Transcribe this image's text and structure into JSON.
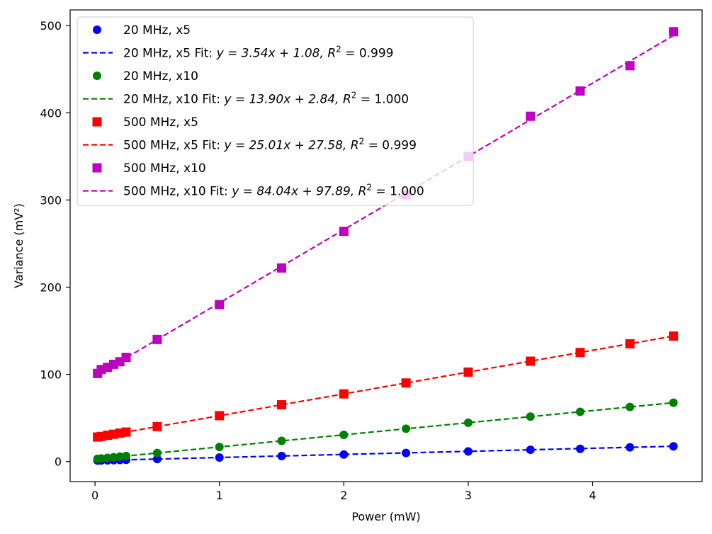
{
  "chart_data": {
    "type": "scatter",
    "title": "",
    "xlabel": "Power (mW)",
    "ylabel": "Variance (mV²)",
    "xlim": [
      -0.2,
      4.88
    ],
    "ylim": [
      -23,
      518
    ],
    "xticks": [
      0,
      1,
      2,
      3,
      4
    ],
    "yticks": [
      0,
      100,
      200,
      300,
      400,
      500
    ],
    "x": [
      0.02,
      0.05,
      0.1,
      0.15,
      0.2,
      0.25,
      0.5,
      1.0,
      1.5,
      2.0,
      2.5,
      3.0,
      3.5,
      3.9,
      4.3,
      4.65
    ],
    "legend_position": "upper-left",
    "series": [
      {
        "name": "20 MHz, x5",
        "color": "#0000ff",
        "marker": "circle",
        "values": [
          1.2,
          1.3,
          1.4,
          1.6,
          1.8,
          2.0,
          2.9,
          4.6,
          6.3,
          8.1,
          9.8,
          11.6,
          13.5,
          14.6,
          16.3,
          17.4
        ],
        "fit": {
          "slope": 3.54,
          "intercept": 1.08,
          "label": "20 MHz, x5 Fit: ",
          "eq": "y = 3.54x + 1.08, ",
          "r2": " = 0.999"
        }
      },
      {
        "name": "20 MHz, x10",
        "color": "#008000",
        "marker": "circle",
        "values": [
          3.1,
          3.5,
          4.2,
          4.9,
          5.6,
          6.3,
          9.8,
          16.7,
          23.7,
          30.6,
          37.6,
          44.5,
          51.5,
          57.0,
          62.6,
          67.5
        ],
        "fit": {
          "slope": 13.9,
          "intercept": 2.84,
          "label": "20 MHz, x10 Fit: ",
          "eq": "y = 13.90x + 2.84, ",
          "r2": " = 1.000"
        }
      },
      {
        "name": "500 MHz, x5",
        "color": "#ff0000",
        "marker": "square",
        "values": [
          28.1,
          28.8,
          30.1,
          31.3,
          32.6,
          33.8,
          40.1,
          52.6,
          65.1,
          77.6,
          90.1,
          102.6,
          115.1,
          125.1,
          135.1,
          143.9
        ],
        "fit": {
          "slope": 25.01,
          "intercept": 27.58,
          "label": "500 MHz, x5 Fit: ",
          "eq": "y = 25.01x + 27.58, ",
          "r2": " = 0.999"
        }
      },
      {
        "name": "500 MHz, x10",
        "color": "#bf00bf",
        "marker": "square",
        "values": [
          101.0,
          105.5,
          108.0,
          111.5,
          114.5,
          119.5,
          140.0,
          180.0,
          222.0,
          264.0,
          306.0,
          350.0,
          396.0,
          425.0,
          454.0,
          493.0
        ],
        "fit": {
          "slope": 84.04,
          "intercept": 97.89,
          "label": "500 MHz, x10 Fit: ",
          "eq": "y = 84.04x + 97.89, ",
          "r2": " = 1.000"
        }
      }
    ]
  }
}
